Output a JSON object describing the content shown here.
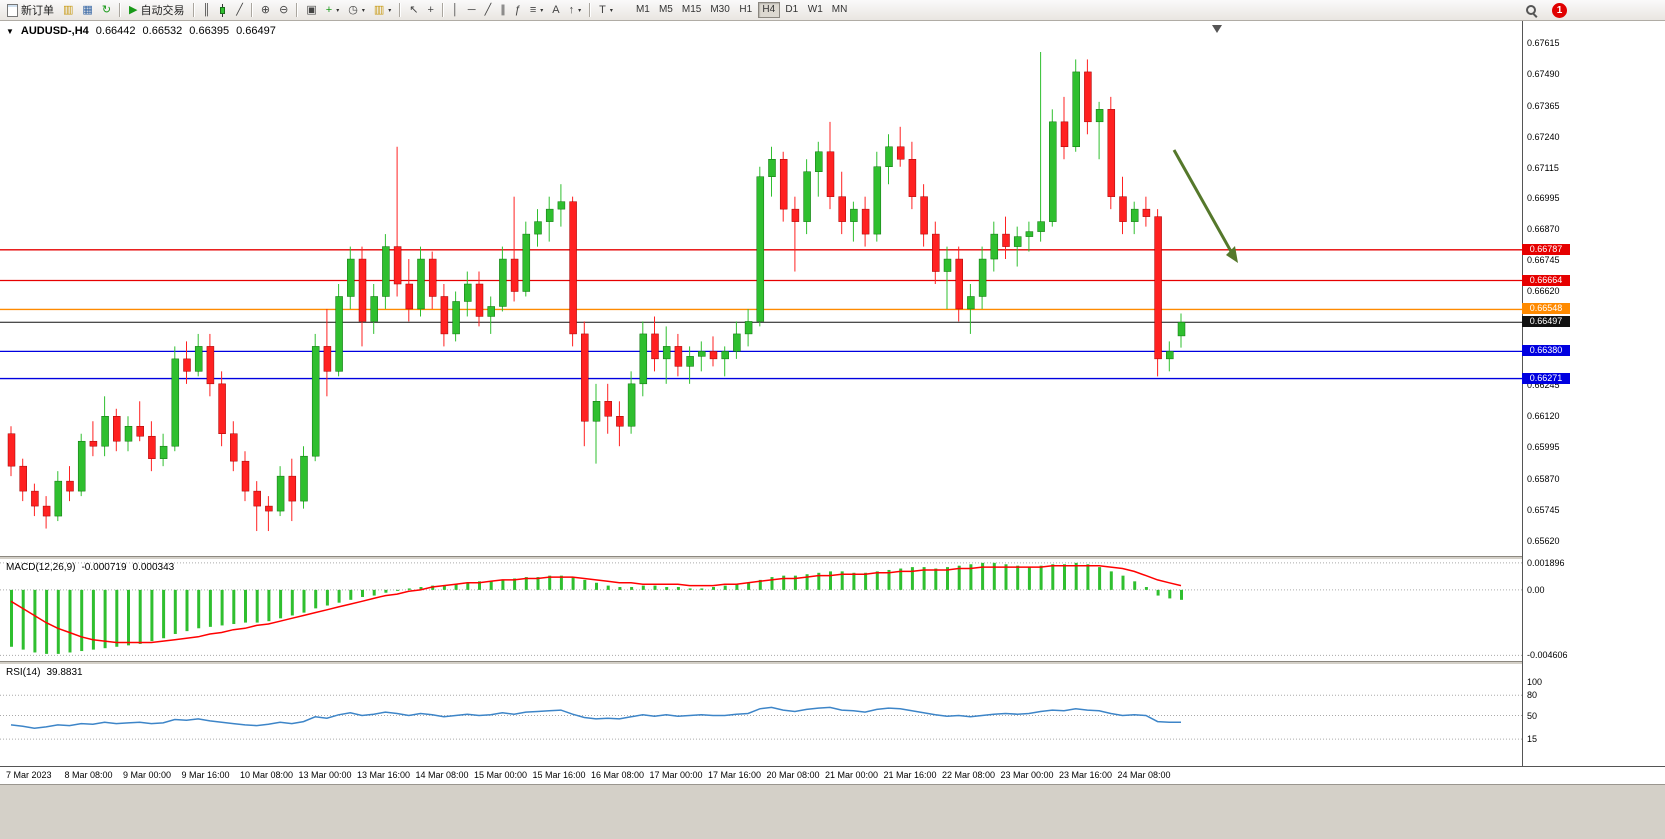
{
  "toolbar": {
    "new_order_label": "新订单",
    "autotrading_label": "自动交易",
    "timeframes": [
      "M1",
      "M5",
      "M15",
      "M30",
      "H1",
      "H4",
      "D1",
      "W1",
      "MN"
    ],
    "active_timeframe": "H4",
    "notification_count": "1"
  },
  "icons": {
    "collapse": "▼",
    "charts": "▥",
    "profile": "▦",
    "refresh": "↻",
    "play": "▶",
    "bar_chart": "║",
    "line_chart": "╱",
    "zoom_in": "⊕",
    "zoom_out": "⊖",
    "tile": "▣",
    "plus": "+",
    "clock": "◷",
    "caret": "▾",
    "cursor": "↖",
    "crosshair": "+",
    "vline": "│",
    "hline": "─",
    "trendline": "╱",
    "channel": "∥",
    "fibonacci": "ƒ",
    "shapes": "≡",
    "text": "A",
    "arrow": "↑",
    "cycles": "T"
  },
  "colors": {
    "up": "#2fbf2f",
    "down": "#ff2121",
    "up_edge": "#0a700a",
    "down_edge": "#a00000",
    "macd_hist": "#2fbf2f",
    "macd_signal": "#ff0000",
    "rsi_line": "#3d85c8",
    "grid": "#aaaaaa"
  },
  "chart_data": [
    {
      "type": "candlestick",
      "title": "AUDUSD-,H4",
      "ohlc_display": {
        "open": "0.66442",
        "high": "0.66532",
        "low": "0.66395",
        "close": "0.66497"
      },
      "price_axis": {
        "min": 0.6556,
        "max": 0.677,
        "labels": [
          "0.67615",
          "0.67490",
          "0.67365",
          "0.67240",
          "0.67115",
          "0.66995",
          "0.66870",
          "0.66745",
          "0.66620",
          "0.66245",
          "0.66120",
          "0.65995",
          "0.65870",
          "0.65745",
          "0.65620"
        ]
      },
      "levels": [
        {
          "price": 0.66787,
          "label": "0.66787",
          "color": "#e60000"
        },
        {
          "price": 0.66664,
          "label": "0.66664",
          "color": "#e60000"
        },
        {
          "price": 0.66548,
          "label": "0.66548",
          "color": "#ff8a00"
        },
        {
          "price": 0.6638,
          "label": "0.66380",
          "color": "#0000e0"
        },
        {
          "price": 0.66271,
          "label": "0.66271",
          "color": "#0000e0"
        }
      ],
      "current_price": {
        "price": 0.66497,
        "label": "0.66497",
        "color": "#111111"
      },
      "annotation": {
        "type": "arrow-down-right",
        "color": "#55782b"
      },
      "x_labels": [
        "7 Mar 2023",
        "8 Mar 08:00",
        "9 Mar 00:00",
        "9 Mar 16:00",
        "10 Mar 08:00",
        "13 Mar 00:00",
        "13 Mar 16:00",
        "14 Mar 08:00",
        "15 Mar 00:00",
        "15 Mar 16:00",
        "16 Mar 08:00",
        "17 Mar 00:00",
        "17 Mar 16:00",
        "20 Mar 08:00",
        "21 Mar 00:00",
        "21 Mar 16:00",
        "22 Mar 08:00",
        "23 Mar 00:00",
        "23 Mar 16:00",
        "24 Mar 08:00"
      ],
      "candles": [
        [
          0.6605,
          0.6608,
          0.6588,
          0.6592
        ],
        [
          0.6592,
          0.6595,
          0.6578,
          0.6582
        ],
        [
          0.6582,
          0.6585,
          0.6572,
          0.6576
        ],
        [
          0.6576,
          0.658,
          0.6567,
          0.6572
        ],
        [
          0.6572,
          0.659,
          0.657,
          0.6586
        ],
        [
          0.6586,
          0.6592,
          0.6578,
          0.6582
        ],
        [
          0.6582,
          0.6605,
          0.658,
          0.6602
        ],
        [
          0.6602,
          0.661,
          0.6596,
          0.66
        ],
        [
          0.66,
          0.662,
          0.6596,
          0.6612
        ],
        [
          0.6612,
          0.6615,
          0.6598,
          0.6602
        ],
        [
          0.6602,
          0.6612,
          0.6598,
          0.6608
        ],
        [
          0.6608,
          0.6618,
          0.6602,
          0.6604
        ],
        [
          0.6604,
          0.661,
          0.659,
          0.6595
        ],
        [
          0.6595,
          0.6605,
          0.6592,
          0.66
        ],
        [
          0.66,
          0.664,
          0.6598,
          0.6635
        ],
        [
          0.6635,
          0.6642,
          0.6625,
          0.663
        ],
        [
          0.663,
          0.6645,
          0.6628,
          0.664
        ],
        [
          0.664,
          0.6645,
          0.662,
          0.6625
        ],
        [
          0.6625,
          0.663,
          0.66,
          0.6605
        ],
        [
          0.6605,
          0.661,
          0.659,
          0.6594
        ],
        [
          0.6594,
          0.6598,
          0.6578,
          0.6582
        ],
        [
          0.6582,
          0.6586,
          0.6566,
          0.6576
        ],
        [
          0.6576,
          0.658,
          0.6566,
          0.6574
        ],
        [
          0.6574,
          0.6592,
          0.6572,
          0.6588
        ],
        [
          0.6588,
          0.6595,
          0.657,
          0.6578
        ],
        [
          0.6578,
          0.66,
          0.6575,
          0.6596
        ],
        [
          0.6596,
          0.6645,
          0.6594,
          0.664
        ],
        [
          0.664,
          0.6655,
          0.662,
          0.663
        ],
        [
          0.663,
          0.6665,
          0.6628,
          0.666
        ],
        [
          0.666,
          0.668,
          0.6655,
          0.6675
        ],
        [
          0.6675,
          0.668,
          0.664,
          0.665
        ],
        [
          0.665,
          0.6665,
          0.6645,
          0.666
        ],
        [
          0.666,
          0.6685,
          0.6655,
          0.668
        ],
        [
          0.668,
          0.672,
          0.666,
          0.6665
        ],
        [
          0.6665,
          0.6675,
          0.665,
          0.6655
        ],
        [
          0.6655,
          0.668,
          0.6652,
          0.6675
        ],
        [
          0.6675,
          0.6678,
          0.6655,
          0.666
        ],
        [
          0.666,
          0.6665,
          0.664,
          0.6645
        ],
        [
          0.6645,
          0.6662,
          0.6642,
          0.6658
        ],
        [
          0.6658,
          0.667,
          0.6652,
          0.6665
        ],
        [
          0.6665,
          0.667,
          0.6648,
          0.6652
        ],
        [
          0.6652,
          0.666,
          0.6645,
          0.6656
        ],
        [
          0.6656,
          0.668,
          0.6654,
          0.6675
        ],
        [
          0.6675,
          0.67,
          0.6658,
          0.6662
        ],
        [
          0.6662,
          0.669,
          0.666,
          0.6685
        ],
        [
          0.6685,
          0.6695,
          0.668,
          0.669
        ],
        [
          0.669,
          0.67,
          0.6682,
          0.6695
        ],
        [
          0.6695,
          0.6705,
          0.6688,
          0.6698
        ],
        [
          0.6698,
          0.67,
          0.664,
          0.6645
        ],
        [
          0.6645,
          0.665,
          0.66,
          0.661
        ],
        [
          0.661,
          0.6625,
          0.6593,
          0.6618
        ],
        [
          0.6618,
          0.6625,
          0.6605,
          0.6612
        ],
        [
          0.6612,
          0.6618,
          0.66,
          0.6608
        ],
        [
          0.6608,
          0.663,
          0.6605,
          0.6625
        ],
        [
          0.6625,
          0.665,
          0.662,
          0.6645
        ],
        [
          0.6645,
          0.6652,
          0.663,
          0.6635
        ],
        [
          0.6635,
          0.6648,
          0.6625,
          0.664
        ],
        [
          0.664,
          0.6645,
          0.6628,
          0.6632
        ],
        [
          0.6632,
          0.664,
          0.6625,
          0.6636
        ],
        [
          0.6636,
          0.6642,
          0.663,
          0.6638
        ],
        [
          0.6638,
          0.6644,
          0.6632,
          0.6635
        ],
        [
          0.6635,
          0.664,
          0.6628,
          0.6638
        ],
        [
          0.6638,
          0.665,
          0.6635,
          0.6645
        ],
        [
          0.6645,
          0.6655,
          0.664,
          0.665
        ],
        [
          0.665,
          0.6712,
          0.6648,
          0.6708
        ],
        [
          0.6708,
          0.672,
          0.67,
          0.6715
        ],
        [
          0.6715,
          0.6718,
          0.669,
          0.6695
        ],
        [
          0.6695,
          0.67,
          0.667,
          0.669
        ],
        [
          0.669,
          0.6715,
          0.6685,
          0.671
        ],
        [
          0.671,
          0.6722,
          0.67,
          0.6718
        ],
        [
          0.6718,
          0.673,
          0.6695,
          0.67
        ],
        [
          0.67,
          0.671,
          0.6685,
          0.669
        ],
        [
          0.669,
          0.6698,
          0.6682,
          0.6695
        ],
        [
          0.6695,
          0.67,
          0.668,
          0.6685
        ],
        [
          0.6685,
          0.6718,
          0.6682,
          0.6712
        ],
        [
          0.6712,
          0.6725,
          0.6705,
          0.672
        ],
        [
          0.672,
          0.6728,
          0.6712,
          0.6715
        ],
        [
          0.6715,
          0.6722,
          0.6695,
          0.67
        ],
        [
          0.67,
          0.6705,
          0.668,
          0.6685
        ],
        [
          0.6685,
          0.669,
          0.6665,
          0.667
        ],
        [
          0.667,
          0.668,
          0.6655,
          0.6675
        ],
        [
          0.6675,
          0.668,
          0.665,
          0.6655
        ],
        [
          0.6655,
          0.6665,
          0.6645,
          0.666
        ],
        [
          0.666,
          0.668,
          0.6655,
          0.6675
        ],
        [
          0.6675,
          0.669,
          0.667,
          0.6685
        ],
        [
          0.6685,
          0.6692,
          0.6675,
          0.668
        ],
        [
          0.668,
          0.6688,
          0.6672,
          0.6684
        ],
        [
          0.6684,
          0.669,
          0.6678,
          0.6686
        ],
        [
          0.6686,
          0.6758,
          0.6682,
          0.669
        ],
        [
          0.669,
          0.6735,
          0.6688,
          0.673
        ],
        [
          0.673,
          0.674,
          0.6715,
          0.672
        ],
        [
          0.672,
          0.6755,
          0.6718,
          0.675
        ],
        [
          0.675,
          0.6755,
          0.6725,
          0.673
        ],
        [
          0.673,
          0.6738,
          0.6715,
          0.6735
        ],
        [
          0.6735,
          0.674,
          0.6695,
          0.67
        ],
        [
          0.67,
          0.6708,
          0.6685,
          0.669
        ],
        [
          0.669,
          0.6698,
          0.6685,
          0.6695
        ],
        [
          0.6695,
          0.67,
          0.6688,
          0.6692
        ],
        [
          0.6692,
          0.6695,
          0.6628,
          0.6635
        ],
        [
          0.6635,
          0.6642,
          0.663,
          0.6638
        ],
        [
          0.66442,
          0.66532,
          0.66395,
          0.66497
        ]
      ]
    },
    {
      "type": "macd",
      "label": "MACD(12,26,9)",
      "value_main": "-0.000719",
      "value_signal": "0.000343",
      "axis": {
        "min": -0.005,
        "max": 0.0021
      },
      "axis_labels": [
        "0.001896",
        "0.00",
        "-0.004606"
      ],
      "histogram": [
        -0.004,
        -0.0042,
        -0.0044,
        -0.0045,
        -0.0045,
        -0.0044,
        -0.0043,
        -0.0042,
        -0.0041,
        -0.004,
        -0.0039,
        -0.0038,
        -0.0036,
        -0.0034,
        -0.0031,
        -0.0029,
        -0.0027,
        -0.0026,
        -0.0025,
        -0.0024,
        -0.0023,
        -0.0023,
        -0.0022,
        -0.002,
        -0.0018,
        -0.0016,
        -0.0013,
        -0.0011,
        -0.0009,
        -0.0007,
        -0.0005,
        -0.0004,
        -0.0002,
        0.0,
        0.0001,
        0.0002,
        0.0003,
        0.0003,
        0.0004,
        0.0005,
        0.0006,
        0.0006,
        0.0007,
        0.0008,
        0.0009,
        0.0009,
        0.001,
        0.001,
        0.0009,
        0.0007,
        0.0005,
        0.0003,
        0.0002,
        0.0002,
        0.0003,
        0.0003,
        0.0002,
        0.0002,
        0.0001,
        0.0001,
        0.0002,
        0.0003,
        0.0004,
        0.0005,
        0.0007,
        0.0009,
        0.001,
        0.001,
        0.0011,
        0.0012,
        0.0013,
        0.0013,
        0.0012,
        0.0012,
        0.0013,
        0.0014,
        0.0015,
        0.0016,
        0.0016,
        0.0015,
        0.0016,
        0.0017,
        0.0018,
        0.0019,
        0.0019,
        0.0018,
        0.0017,
        0.0016,
        0.0017,
        0.0018,
        0.0018,
        0.0019,
        0.0018,
        0.0016,
        0.0013,
        0.001,
        0.0006,
        0.0002,
        -0.0004,
        -0.0006,
        -0.0007
      ],
      "signal": [
        -0.0008,
        -0.0013,
        -0.0018,
        -0.0023,
        -0.0027,
        -0.003,
        -0.0033,
        -0.0035,
        -0.0036,
        -0.0037,
        -0.0037,
        -0.0037,
        -0.0037,
        -0.0036,
        -0.0035,
        -0.0034,
        -0.0033,
        -0.0031,
        -0.003,
        -0.0028,
        -0.0027,
        -0.0025,
        -0.0024,
        -0.0022,
        -0.002,
        -0.0018,
        -0.0016,
        -0.0014,
        -0.0012,
        -0.001,
        -0.0008,
        -0.0006,
        -0.0004,
        -0.0003,
        -0.0001,
        0.0,
        0.0002,
        0.0003,
        0.0004,
        0.0005,
        0.0005,
        0.0006,
        0.0007,
        0.0007,
        0.0008,
        0.0008,
        0.0009,
        0.0009,
        0.0009,
        0.0008,
        0.0007,
        0.0006,
        0.0005,
        0.0005,
        0.0004,
        0.0004,
        0.0004,
        0.0004,
        0.0003,
        0.0003,
        0.0003,
        0.0004,
        0.0004,
        0.0005,
        0.0006,
        0.0007,
        0.0008,
        0.0008,
        0.0009,
        0.001,
        0.001,
        0.0011,
        0.0011,
        0.0011,
        0.0012,
        0.0012,
        0.0013,
        0.0013,
        0.0014,
        0.0014,
        0.0014,
        0.0015,
        0.0015,
        0.0016,
        0.0016,
        0.0016,
        0.0016,
        0.0016,
        0.0016,
        0.0017,
        0.0017,
        0.0017,
        0.0017,
        0.0017,
        0.0016,
        0.0015,
        0.0013,
        0.001,
        0.0007,
        0.0005,
        0.0003
      ]
    },
    {
      "type": "rsi",
      "label": "RSI(14)",
      "value": "39.8831",
      "axis": {
        "min": -25,
        "max": 125
      },
      "axis_labels": [
        "100",
        "80",
        "50",
        "15"
      ],
      "levels": [
        80,
        50,
        15
      ],
      "values": [
        36,
        34,
        31,
        33,
        36,
        35,
        38,
        37,
        40,
        38,
        39,
        40,
        38,
        39,
        44,
        43,
        45,
        42,
        40,
        38,
        36,
        35,
        37,
        40,
        38,
        41,
        48,
        46,
        51,
        54,
        50,
        52,
        55,
        53,
        50,
        53,
        51,
        48,
        50,
        52,
        50,
        51,
        54,
        52,
        55,
        56,
        57,
        58,
        52,
        47,
        45,
        46,
        45,
        48,
        51,
        49,
        51,
        49,
        50,
        51,
        50,
        50,
        52,
        53,
        60,
        62,
        58,
        56,
        59,
        61,
        62,
        58,
        57,
        55,
        59,
        61,
        60,
        57,
        54,
        51,
        49,
        50,
        48,
        50,
        52,
        53,
        52,
        53,
        56,
        58,
        57,
        60,
        58,
        57,
        53,
        50,
        51,
        50,
        41,
        40,
        39.88
      ]
    }
  ]
}
